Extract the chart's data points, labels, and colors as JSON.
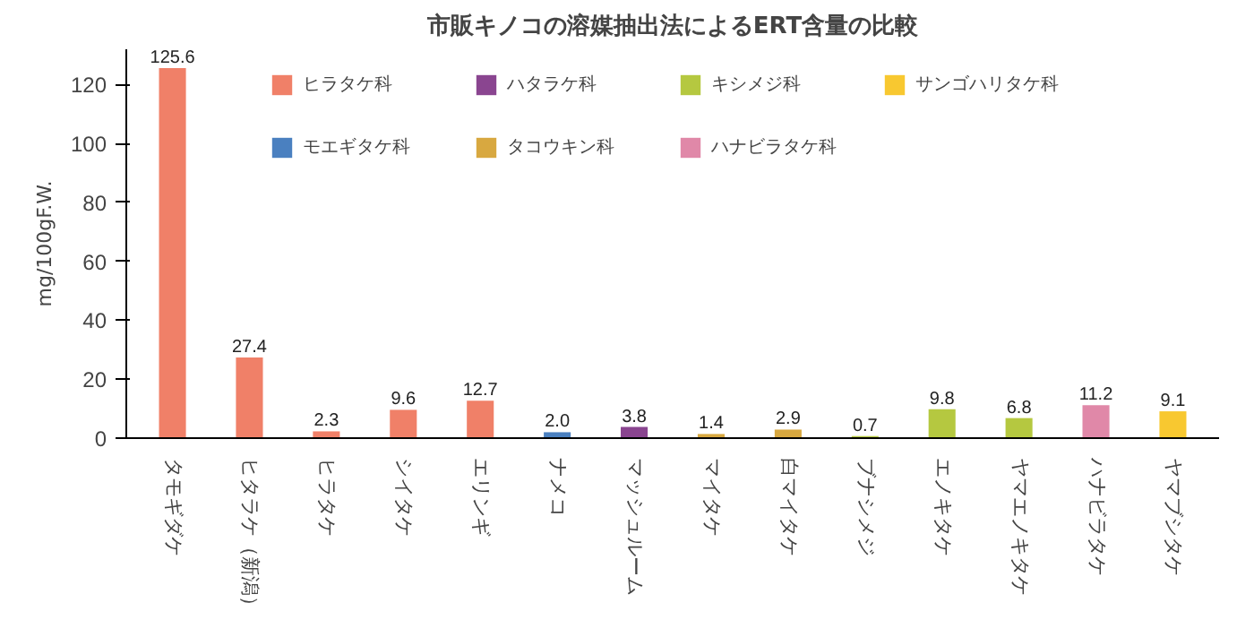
{
  "chart_data": {
    "type": "bar",
    "title": "市販キノコの溶媒抽出法によるERT含量の比較",
    "ylabel": "mg/100gF.W.",
    "categories": [
      "タモギダケ",
      "ヒタラケ（新潟）",
      "ヒラタケ",
      "シイタケ",
      "エリンギ",
      "ナメコ",
      "マッシュルーム",
      "マイタケ",
      "白マイタケ",
      "ブナシメジ",
      "エノキタケ",
      "ヤマエノキタケ",
      "ハナビラタケ",
      "ヤマブシタケ"
    ],
    "series": [
      {
        "name": "ヒラタケ科",
        "color": "#f08068",
        "values": [
          125.6,
          27.4,
          2.3,
          9.6,
          12.7,
          null,
          null,
          null,
          null,
          null,
          null,
          null,
          null,
          null
        ],
        "value_labels": [
          "125.6",
          "27.4",
          "2.3",
          "9.6",
          "12.7",
          null,
          null,
          null,
          null,
          null,
          null,
          null,
          null,
          null
        ]
      },
      {
        "name": "ハタラケ科",
        "color": "#8a4590",
        "values": [
          null,
          null,
          null,
          null,
          null,
          null,
          3.8,
          null,
          null,
          null,
          null,
          null,
          null,
          null
        ],
        "value_labels": [
          null,
          null,
          null,
          null,
          null,
          null,
          "3.8",
          null,
          null,
          null,
          null,
          null,
          null,
          null
        ]
      },
      {
        "name": "キシメジ科",
        "color": "#b5c840",
        "values": [
          null,
          null,
          null,
          null,
          null,
          null,
          null,
          null,
          null,
          0.7,
          9.8,
          6.8,
          null,
          null
        ],
        "value_labels": [
          null,
          null,
          null,
          null,
          null,
          null,
          null,
          null,
          null,
          "0.7",
          "9.8",
          "6.8",
          null,
          null
        ]
      },
      {
        "name": "サンゴハリタケ科",
        "color": "#f8c830",
        "values": [
          null,
          null,
          null,
          null,
          null,
          null,
          null,
          null,
          null,
          null,
          null,
          null,
          null,
          9.1
        ],
        "value_labels": [
          null,
          null,
          null,
          null,
          null,
          null,
          null,
          null,
          null,
          null,
          null,
          null,
          null,
          "9.1"
        ]
      },
      {
        "name": "モエギタケ科",
        "color": "#4a80c0",
        "values": [
          null,
          null,
          null,
          null,
          null,
          2.0,
          null,
          null,
          null,
          null,
          null,
          null,
          null,
          null
        ],
        "value_labels": [
          null,
          null,
          null,
          null,
          null,
          "2.0",
          null,
          null,
          null,
          null,
          null,
          null,
          null,
          null
        ]
      },
      {
        "name": "タコウキン科",
        "color": "#d8a840",
        "values": [
          null,
          null,
          null,
          null,
          null,
          null,
          null,
          1.4,
          2.9,
          null,
          null,
          null,
          null,
          null
        ],
        "value_labels": [
          null,
          null,
          null,
          null,
          null,
          null,
          null,
          "1.4",
          "2.9",
          null,
          null,
          null,
          null,
          null
        ]
      },
      {
        "name": "ハナビラタケ科",
        "color": "#e088a8",
        "values": [
          null,
          null,
          null,
          null,
          null,
          null,
          null,
          null,
          null,
          null,
          null,
          null,
          11.2,
          null
        ],
        "value_labels": [
          null,
          null,
          null,
          null,
          null,
          null,
          null,
          null,
          null,
          null,
          null,
          null,
          "11.2",
          null
        ]
      }
    ],
    "ylim": [
      0,
      132
    ],
    "yticks": [
      0,
      20,
      40,
      60,
      80,
      100,
      120
    ],
    "grid": false,
    "legend": "top"
  }
}
